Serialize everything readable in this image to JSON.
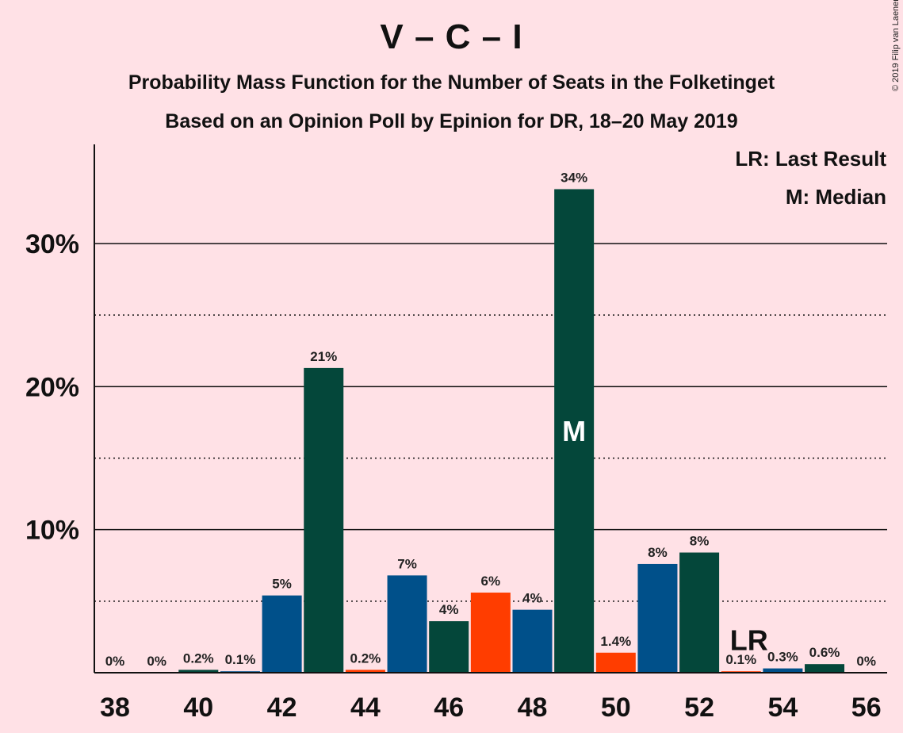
{
  "title": "V – C – I",
  "subtitle1": "Probability Mass Function for the Number of Seats in the Folketinget",
  "subtitle2": "Based on an Opinion Poll by Epinion for DR, 18–20 May 2019",
  "copyright": "© 2019 Filip van Laenen",
  "legend": {
    "last_result": "LR: Last Result",
    "median": "M: Median"
  },
  "colors": {
    "background": "#ffe1e6",
    "V": "#00508a",
    "C": "#04473a",
    "I": "#ff3d00"
  },
  "chart_data": {
    "type": "bar",
    "x": [
      38,
      39,
      40,
      41,
      42,
      43,
      44,
      45,
      46,
      47,
      48,
      49,
      50,
      51,
      52,
      53,
      54,
      55,
      56
    ],
    "values": [
      0,
      0,
      0.2,
      0.1,
      5.4,
      21.3,
      0.2,
      6.8,
      3.6,
      5.6,
      4.4,
      33.8,
      1.4,
      7.6,
      8.4,
      0.1,
      0.3,
      0.6,
      0
    ],
    "labels": [
      "0%",
      "0%",
      "0.2%",
      "0.1%",
      "5%",
      "21%",
      "0.2%",
      "7%",
      "4%",
      "6%",
      "4%",
      "34%",
      "1.4%",
      "8%",
      "8%",
      "0.1%",
      "0.3%",
      "0.6%",
      "0%"
    ],
    "bar_party": [
      "C",
      "V",
      "C",
      "V",
      "V",
      "C",
      "I",
      "V",
      "C",
      "I",
      "V",
      "C",
      "I",
      "V",
      "C",
      "I",
      "V",
      "C",
      "V"
    ],
    "x_ticks": [
      "38",
      "40",
      "42",
      "44",
      "46",
      "48",
      "50",
      "52",
      "54",
      "56"
    ],
    "y_ticks": [
      "10%",
      "20%",
      "30%"
    ],
    "ylim": [
      0,
      37
    ],
    "major_gridlines": [
      10,
      20,
      30
    ],
    "minor_gridlines": [
      5,
      15,
      25
    ],
    "median": 49,
    "median_marker": "M",
    "last_result": 53,
    "last_result_marker": "LR",
    "legend_placement": "top-right"
  }
}
